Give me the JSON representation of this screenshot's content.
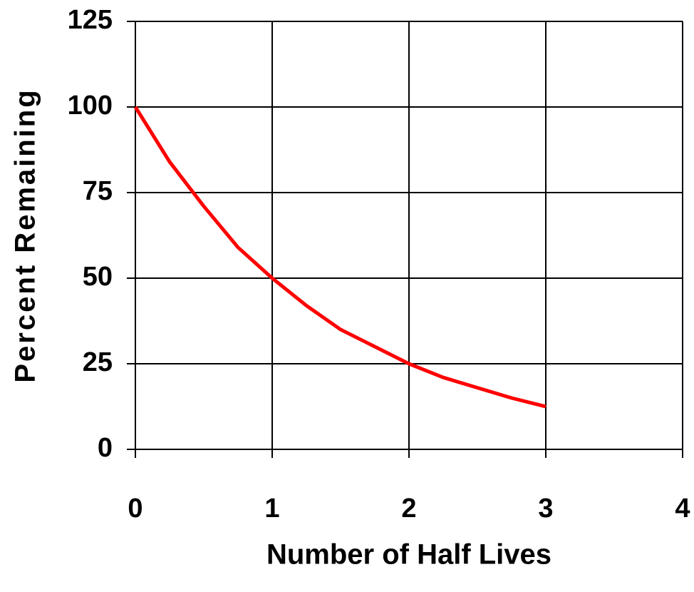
{
  "chart_data": {
    "type": "line",
    "x_label": "Number of Half Lives",
    "y_label": "Percent Remaining",
    "x": [
      0,
      0.25,
      0.5,
      0.75,
      1,
      1.25,
      1.5,
      1.75,
      2,
      2.25,
      2.5,
      2.75,
      3
    ],
    "series": [
      {
        "color": "#ff0000",
        "values": [
          100,
          84,
          71,
          59,
          50,
          42,
          35,
          30,
          25,
          21,
          18,
          15,
          12.5
        ]
      }
    ],
    "xlim": [
      0,
      4
    ],
    "xticks": [
      0,
      1,
      2,
      3,
      4
    ],
    "ylim": [
      0,
      125
    ],
    "yticks": [
      0,
      25,
      50,
      75,
      100,
      125
    ],
    "grid": true
  }
}
